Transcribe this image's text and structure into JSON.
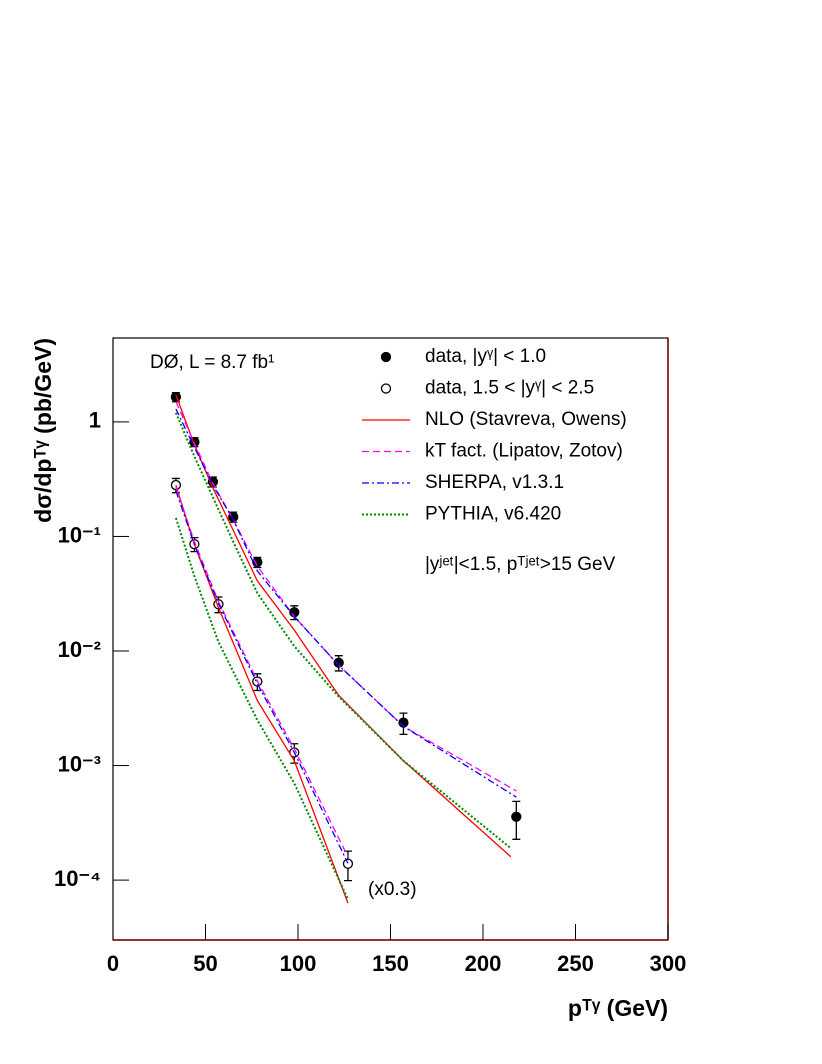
{
  "chart_data": {
    "type": "scatter",
    "x_label": "pᵀᵞ (GeV)",
    "y_label": "dσ/dpᵀᵞ (pb/GeV)",
    "annotations": [
      "DØ, L = 8.7 fb¹",
      "|yʲᵉᵗ|<1.5, pᵀʲᵉᵗ>15 GeV",
      "(x0.3)"
    ],
    "log_y": true,
    "xlim": [
      0,
      300
    ],
    "ylim": [
      3e-05,
      5.4
    ],
    "xticks": [
      0,
      50,
      100,
      150,
      200,
      250,
      300
    ],
    "yticks": [
      {
        "value": 0.0001,
        "label": "10⁻⁴"
      },
      {
        "value": 0.001,
        "label": "10⁻³"
      },
      {
        "value": 0.01,
        "label": "10⁻²"
      },
      {
        "value": 0.1,
        "label": "10⁻¹"
      },
      1
    ],
    "series": [
      {
        "name": "data, |yᵞ| < 1.0",
        "color": "#000000",
        "marker": "filled",
        "x": [
          34,
          44,
          54,
          65,
          78,
          98,
          122,
          157,
          218
        ],
        "values": [
          1.65,
          0.668,
          0.3,
          0.148,
          0.0596,
          0.0218,
          0.0079,
          0.00237,
          0.000357
        ],
        "errors": [
          0.15,
          0.06,
          0.03,
          0.015,
          0.006,
          0.003,
          0.0012,
          0.0005,
          0.00013
        ]
      },
      {
        "name": "data, 1.5 < |yᵞ| < 2.5",
        "color": "#000000",
        "marker": "open",
        "x": [
          34,
          44,
          57,
          78,
          98,
          127
        ],
        "values": [
          0.281,
          0.0857,
          0.0256,
          0.00542,
          0.0013,
          0.000139
        ],
        "errors": [
          0.04,
          0.012,
          0.004,
          0.0009,
          0.00025,
          4e-05
        ]
      },
      {
        "name": "NLO (Stavreva, Owens)",
        "color": "#ff0000",
        "dash": "solid",
        "x": [
          34,
          44,
          54,
          65,
          78,
          98,
          122,
          157,
          215
        ],
        "values": [
          1.72,
          0.63,
          0.265,
          0.113,
          0.041,
          0.0152,
          0.0041,
          0.0011,
          0.00016
        ]
      },
      {
        "name": "kT fact. (Lipatov, Zotov)",
        "color": "#ff00ff",
        "dash": "dashed",
        "x": [
          34,
          44,
          54,
          65,
          78,
          98,
          122,
          157,
          218
        ],
        "values": [
          1.5,
          0.65,
          0.29,
          0.14,
          0.055,
          0.02,
          0.0075,
          0.0022,
          0.0006
        ]
      },
      {
        "name": "SHERPA, v1.3.1",
        "color": "#0000ff",
        "dash": "dashdot",
        "x": [
          34,
          44,
          54,
          65,
          78,
          98,
          122,
          157,
          218
        ],
        "values": [
          1.3,
          0.6,
          0.28,
          0.14,
          0.05,
          0.02,
          0.0075,
          0.0022,
          0.00053
        ]
      },
      {
        "name": "PYTHIA, v6.420",
        "color": "#008800",
        "dash": "dotted",
        "x": [
          34,
          44,
          54,
          65,
          78,
          98,
          122,
          157,
          215
        ],
        "values": [
          1.2,
          0.5,
          0.22,
          0.09,
          0.032,
          0.011,
          0.004,
          0.0011,
          0.00019
        ]
      },
      {
        "color": "#ff0000",
        "dash": "solid",
        "x": [
          34,
          44,
          57,
          78,
          98,
          127
        ],
        "values": [
          0.28,
          0.085,
          0.024,
          0.0037,
          0.0011,
          6.3e-05
        ]
      },
      {
        "color": "#ff00ff",
        "dash": "dashed",
        "x": [
          34,
          44,
          57,
          78,
          98,
          127
        ],
        "values": [
          0.27,
          0.09,
          0.027,
          0.0055,
          0.0014,
          0.00016
        ]
      },
      {
        "color": "#0000ff",
        "dash": "dashdot",
        "x": [
          34,
          44,
          57,
          78,
          98,
          127
        ],
        "values": [
          0.25,
          0.085,
          0.026,
          0.0052,
          0.0013,
          0.00014
        ]
      },
      {
        "color": "#008800",
        "dash": "dotted",
        "x": [
          34,
          44,
          57,
          78,
          98,
          127
        ],
        "values": [
          0.145,
          0.045,
          0.012,
          0.0025,
          0.0007,
          6.8e-05
        ]
      }
    ]
  }
}
